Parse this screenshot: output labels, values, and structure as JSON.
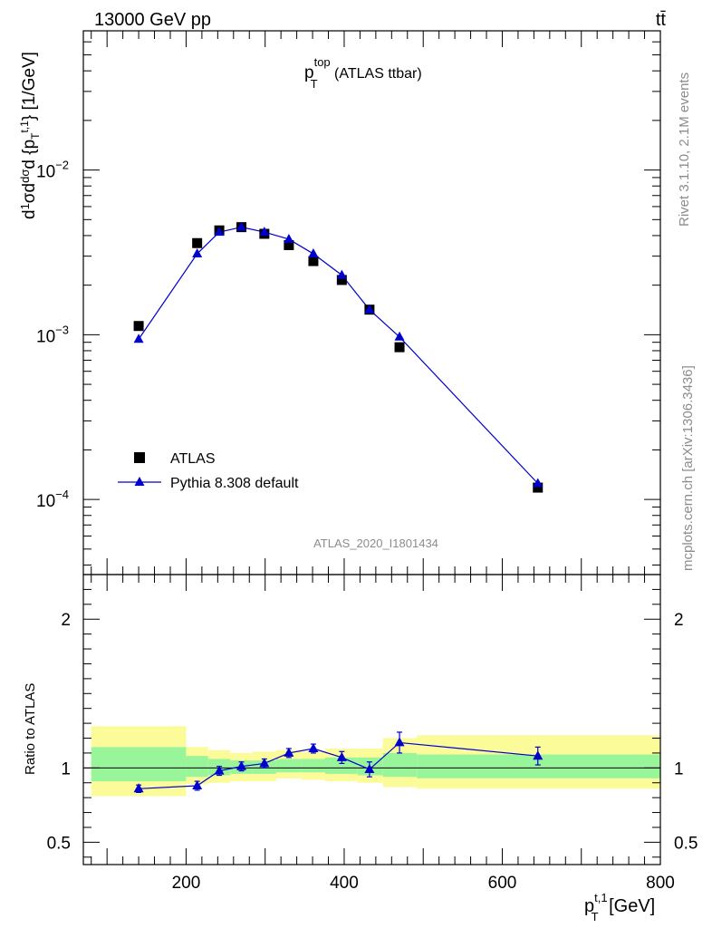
{
  "header": {
    "left": "13000 GeV pp",
    "right": "tt̄",
    "side_top": "Rivet 3.1.10,  2.1M events",
    "side_bottom": "mcplots.cern.ch [arXiv:1306.3436]",
    "watermark": "ATLAS_2020_I1801434"
  },
  "plot_title": {
    "main": "p",
    "sub": "T",
    "sup": "top",
    "rest": " (ATLAS ttbar)"
  },
  "colors": {
    "mc": "#0000cc",
    "data": "#000000",
    "band_inner": "#99f599",
    "band_outer": "#fbfb99"
  },
  "chart_data": [
    {
      "type": "scatter",
      "panel": "main",
      "y_log": true,
      "xlim": [
        70,
        800
      ],
      "ylim": [
        3.5e-05,
        0.07
      ],
      "ylabel": "dσ/dp_T [1/GeV]",
      "y_ticklabels": [
        {
          "value": 0.01,
          "base": "10",
          "exp": "−2"
        },
        {
          "value": 0.001,
          "base": "10",
          "exp": "−3"
        },
        {
          "value": 0.0001,
          "base": "10",
          "exp": "−4"
        }
      ],
      "legend": {
        "position": "lower-left",
        "entries": [
          "ATLAS",
          "Pythia 8.308 default"
        ]
      },
      "series": [
        {
          "name": "ATLAS",
          "marker": "square",
          "x": [
            140,
            214,
            242,
            270,
            299,
            330,
            361,
            397,
            432,
            470,
            645
          ],
          "y": [
            0.00113,
            0.0036,
            0.0043,
            0.0045,
            0.0041,
            0.0035,
            0.0028,
            0.00215,
            0.00142,
            0.00084,
            0.000118
          ]
        },
        {
          "name": "Pythia 8.308 default",
          "marker": "triangle",
          "x": [
            140,
            214,
            242,
            270,
            299,
            330,
            361,
            397,
            432,
            470,
            645
          ],
          "y": [
            0.00094,
            0.0031,
            0.0042,
            0.0045,
            0.0042,
            0.0038,
            0.0031,
            0.0023,
            0.00142,
            0.00097,
            0.000125
          ],
          "err": [
            3e-05,
            8e-05,
            8e-05,
            8e-05,
            8e-05,
            8e-05,
            7e-05,
            6e-05,
            4e-05,
            4e-05,
            8e-06
          ]
        }
      ]
    },
    {
      "type": "scatter",
      "panel": "ratio",
      "xlim": [
        70,
        800
      ],
      "ylim": [
        0.35,
        2.3
      ],
      "ylabel": "Ratio to ATLAS",
      "xlabel_base": "p",
      "xlabel_sub": "T",
      "xlabel_sup": "t,1",
      "xlabel_unit": " [GeV]",
      "x_ticks": [
        200,
        400,
        600,
        800
      ],
      "y_ticks": [
        {
          "value": 0.5,
          "label": "0.5"
        },
        {
          "value": 1,
          "label": "1"
        },
        {
          "value": 2,
          "label": "2"
        }
      ],
      "bands": [
        {
          "x0": 80,
          "x1": 200,
          "inner": [
            0.91,
            1.14
          ],
          "outer": [
            0.81,
            1.28
          ]
        },
        {
          "x0": 200,
          "x1": 228,
          "inner": [
            0.94,
            1.08
          ],
          "outer": [
            0.89,
            1.14
          ]
        },
        {
          "x0": 228,
          "x1": 256,
          "inner": [
            0.95,
            1.06
          ],
          "outer": [
            0.9,
            1.12
          ]
        },
        {
          "x0": 256,
          "x1": 284,
          "inner": [
            0.96,
            1.05
          ],
          "outer": [
            0.91,
            1.1
          ]
        },
        {
          "x0": 284,
          "x1": 314,
          "inner": [
            0.96,
            1.05
          ],
          "outer": [
            0.91,
            1.11
          ]
        },
        {
          "x0": 314,
          "x1": 346,
          "inner": [
            0.97,
            1.06
          ],
          "outer": [
            0.93,
            1.12
          ]
        },
        {
          "x0": 346,
          "x1": 376,
          "inner": [
            0.97,
            1.06
          ],
          "outer": [
            0.92,
            1.11
          ]
        },
        {
          "x0": 376,
          "x1": 417,
          "inner": [
            0.96,
            1.07
          ],
          "outer": [
            0.91,
            1.13
          ]
        },
        {
          "x0": 417,
          "x1": 449,
          "inner": [
            0.95,
            1.07
          ],
          "outer": [
            0.9,
            1.13
          ]
        },
        {
          "x0": 449,
          "x1": 492,
          "inner": [
            0.94,
            1.1
          ],
          "outer": [
            0.87,
            1.2
          ]
        },
        {
          "x0": 492,
          "x1": 800,
          "inner": [
            0.93,
            1.09
          ],
          "outer": [
            0.86,
            1.22
          ]
        }
      ],
      "series": [
        {
          "name": "Pythia 8.308 default",
          "x": [
            140,
            214,
            242,
            270,
            299,
            330,
            361,
            397,
            432,
            470,
            645
          ],
          "y": [
            0.86,
            0.88,
            0.98,
            1.01,
            1.03,
            1.1,
            1.13,
            1.07,
            0.99,
            1.17,
            1.08
          ],
          "err": [
            0.025,
            0.03,
            0.03,
            0.03,
            0.03,
            0.03,
            0.03,
            0.04,
            0.05,
            0.07,
            0.06
          ]
        }
      ]
    }
  ]
}
